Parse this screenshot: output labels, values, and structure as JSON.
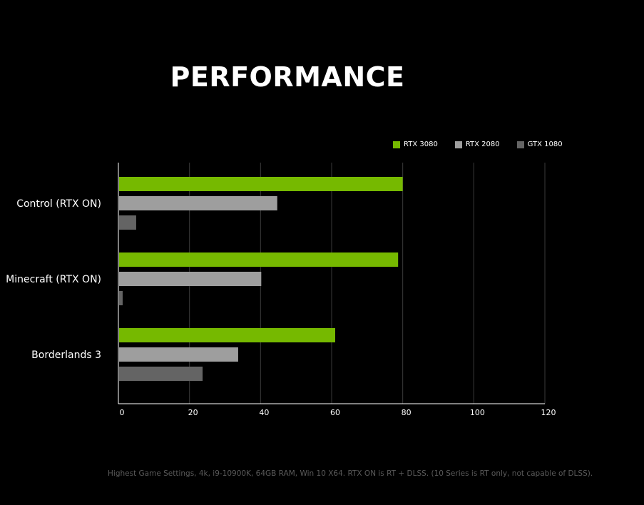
{
  "header": {
    "title": "PERFORMANCE"
  },
  "footnote": "Highest Game Settings, 4k, i9-10900K, 64GB RAM, Win 10 X64. RTX ON is RT + DLSS. (10 Series is RT only, not capable of DLSS).",
  "chart_data": {
    "type": "bar",
    "orientation": "horizontal",
    "categories": [
      "Control (RTX ON)",
      "Minecraft (RTX ON)",
      "Borderlands 3"
    ],
    "series": [
      {
        "name": "RTX 3080",
        "color": "#76b900",
        "values": [
          80,
          78.7,
          61
        ]
      },
      {
        "name": "RTX 2080",
        "color": "#9e9e9e",
        "values": [
          44.7,
          40.2,
          33.7
        ]
      },
      {
        "name": "GTX 1080",
        "color": "#646464",
        "values": [
          5,
          1.2,
          23.7
        ]
      }
    ],
    "xlim": [
      0,
      120
    ],
    "xticks": [
      0,
      20,
      40,
      60,
      80,
      100,
      120
    ],
    "grid": true,
    "legend_position": "top-right"
  }
}
